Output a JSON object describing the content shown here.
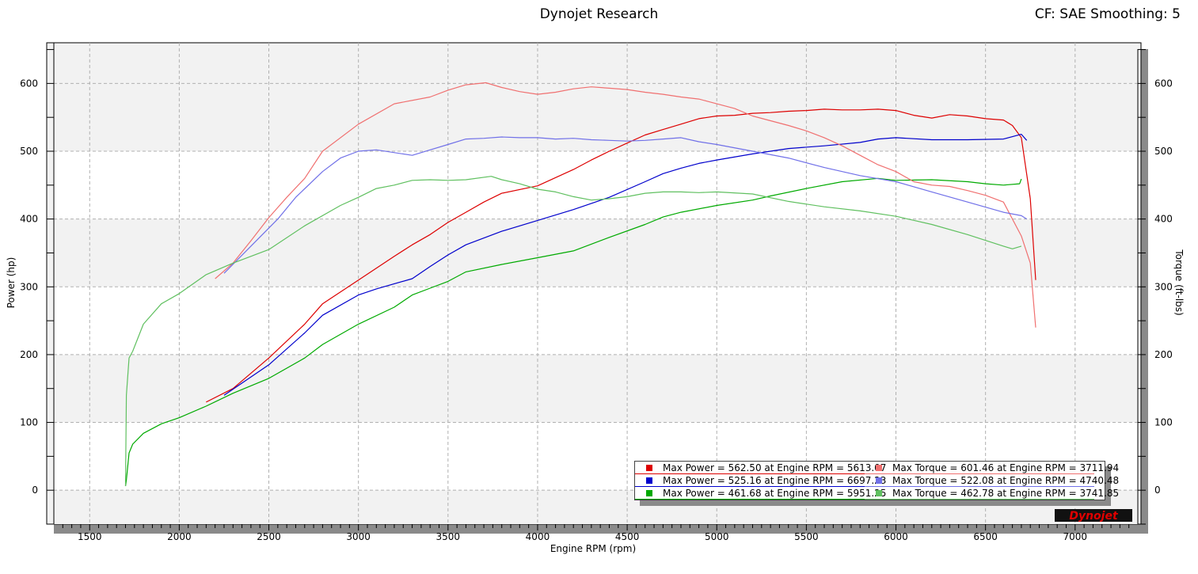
{
  "header": {
    "title": "Dynojet Research",
    "cf_info": "CF: SAE Smoothing: 5"
  },
  "logo_text": "Dynojet",
  "chart_data": {
    "type": "line",
    "title": "Dynojet Research",
    "xlabel": "Engine RPM (rpm)",
    "ylabel": "Power (hp)",
    "y2label": "Torque (ft-lbs)",
    "xlim": [
      1300,
      7350
    ],
    "ylim": [
      -50,
      660
    ],
    "y2lim": [
      -50,
      660
    ],
    "xticks": [
      "1500",
      "2000",
      "2500",
      "3000",
      "3500",
      "4000",
      "4500",
      "5000",
      "5500",
      "6000",
      "6500",
      "7000"
    ],
    "yticks": [
      "0",
      "100",
      "200",
      "300",
      "400",
      "500",
      "600"
    ],
    "y2ticks": [
      "0",
      "100",
      "200",
      "300",
      "400",
      "500",
      "600"
    ],
    "grid": true,
    "legend_position": "bottom-right",
    "colors": {
      "power_red": "#dd0000",
      "power_blue": "#0000cc",
      "power_green": "#00aa00",
      "torque_red": "#f07070",
      "torque_blue": "#7070e8",
      "torque_green": "#60c060"
    },
    "series": [
      {
        "name": "Max Power = 562.50 at Engine RPM = 5613.07",
        "key": "power_red",
        "axis": "left",
        "x": [
          2150,
          2300,
          2500,
          2700,
          2800,
          3000,
          3200,
          3300,
          3400,
          3500,
          3600,
          3700,
          3800,
          4000,
          4200,
          4300,
          4400,
          4500,
          4600,
          4700,
          4800,
          4900,
          5000,
          5100,
          5200,
          5300,
          5400,
          5500,
          5600,
          5700,
          5800,
          5900,
          6000,
          6100,
          6200,
          6300,
          6400,
          6500,
          6600,
          6650,
          6700,
          6750,
          6780
        ],
        "values": [
          130,
          150,
          195,
          245,
          275,
          310,
          345,
          362,
          377,
          395,
          410,
          425,
          438,
          449,
          473,
          487,
          500,
          512,
          524,
          532,
          540,
          548,
          552,
          553,
          556,
          557,
          559,
          560,
          562,
          561,
          561,
          562,
          560,
          553,
          549,
          554,
          552,
          548,
          546,
          538,
          520,
          430,
          310
        ]
      },
      {
        "name": "Max Power = 525.16 at Engine RPM = 6697.23",
        "key": "power_blue",
        "axis": "left",
        "x": [
          2250,
          2500,
          2700,
          2800,
          3000,
          3100,
          3300,
          3400,
          3500,
          3600,
          3800,
          4000,
          4200,
          4400,
          4600,
          4700,
          4800,
          4900,
          5000,
          5200,
          5400,
          5600,
          5800,
          5900,
          6000,
          6200,
          6400,
          6600,
          6700,
          6730
        ],
        "values": [
          140,
          185,
          232,
          258,
          288,
          297,
          312,
          330,
          347,
          362,
          382,
          398,
          414,
          432,
          455,
          467,
          475,
          482,
          487,
          496,
          504,
          508,
          513,
          518,
          520,
          517,
          517,
          518,
          525,
          516
        ]
      },
      {
        "name": "Max Power = 461.68 at Engine RPM = 5951.25",
        "key": "power_green",
        "axis": "left",
        "x": [
          1700,
          1705,
          1720,
          1740,
          1800,
          1900,
          2000,
          2150,
          2300,
          2500,
          2700,
          2800,
          3000,
          3200,
          3300,
          3400,
          3500,
          3600,
          3800,
          4000,
          4200,
          4400,
          4600,
          4700,
          4800,
          5000,
          5200,
          5300,
          5500,
          5700,
          5900,
          6000,
          6200,
          6400,
          6500,
          6600,
          6690,
          6700
        ],
        "values": [
          6,
          15,
          55,
          68,
          84,
          98,
          107,
          124,
          143,
          165,
          195,
          215,
          245,
          270,
          288,
          298,
          308,
          322,
          333,
          343,
          353,
          373,
          392,
          403,
          410,
          420,
          428,
          434,
          445,
          455,
          460,
          457,
          458,
          455,
          452,
          450,
          452,
          459
        ]
      },
      {
        "name": "Max Torque = 601.46 at Engine RPM = 3711.94",
        "key": "torque_red",
        "axis": "right",
        "x": [
          2200,
          2300,
          2400,
          2500,
          2600,
          2700,
          2800,
          3000,
          3200,
          3400,
          3500,
          3600,
          3711,
          3800,
          3900,
          4000,
          4100,
          4200,
          4300,
          4400,
          4500,
          4600,
          4700,
          4800,
          4900,
          5000,
          5100,
          5200,
          5300,
          5400,
          5500,
          5600,
          5700,
          5800,
          5900,
          6000,
          6100,
          6200,
          6300,
          6400,
          6500,
          6600,
          6700,
          6750,
          6780
        ],
        "values": [
          312,
          335,
          368,
          402,
          432,
          460,
          500,
          540,
          570,
          580,
          590,
          598,
          601,
          594,
          588,
          584,
          587,
          592,
          595,
          593,
          591,
          587,
          584,
          580,
          577,
          570,
          563,
          552,
          545,
          538,
          530,
          520,
          508,
          494,
          480,
          470,
          455,
          450,
          448,
          442,
          435,
          425,
          375,
          335,
          240
        ]
      },
      {
        "name": "Max Torque = 522.08 at Engine RPM = 4740.48",
        "key": "torque_blue",
        "axis": "right",
        "x": [
          2250,
          2400,
          2550,
          2650,
          2800,
          2900,
          3000,
          3100,
          3300,
          3400,
          3500,
          3600,
          3700,
          3800,
          3900,
          4000,
          4100,
          4200,
          4300,
          4400,
          4500,
          4600,
          4700,
          4800,
          4900,
          5000,
          5200,
          5400,
          5600,
          5800,
          6000,
          6200,
          6400,
          6600,
          6700,
          6730
        ],
        "values": [
          320,
          360,
          400,
          432,
          470,
          490,
          500,
          502,
          494,
          502,
          510,
          518,
          519,
          521,
          520,
          520,
          518,
          519,
          517,
          516,
          515,
          516,
          518,
          520,
          514,
          510,
          500,
          490,
          476,
          464,
          455,
          440,
          425,
          410,
          405,
          400
        ]
      },
      {
        "name": "Max Torque = 462.78 at Engine RPM = 3741.85",
        "key": "torque_green",
        "axis": "right",
        "x": [
          1700,
          1705,
          1720,
          1740,
          1800,
          1900,
          2000,
          2150,
          2300,
          2500,
          2700,
          2900,
          3000,
          3100,
          3200,
          3300,
          3400,
          3500,
          3600,
          3741,
          3800,
          3900,
          4000,
          4100,
          4200,
          4300,
          4400,
          4500,
          4600,
          4700,
          4800,
          4900,
          5000,
          5200,
          5400,
          5600,
          5800,
          6000,
          6200,
          6400,
          6600,
          6650,
          6700
        ],
        "values": [
          6,
          140,
          195,
          205,
          245,
          275,
          290,
          318,
          335,
          355,
          390,
          420,
          432,
          445,
          450,
          457,
          458,
          457,
          458,
          463,
          458,
          452,
          444,
          440,
          433,
          428,
          430,
          433,
          438,
          440,
          440,
          439,
          440,
          437,
          426,
          418,
          412,
          404,
          392,
          377,
          360,
          356,
          360
        ]
      }
    ]
  },
  "legend": {
    "left": [
      {
        "label": "Max Power = 562.50 at Engine RPM = 5613.07",
        "key": "power_red"
      },
      {
        "label": "Max Power = 525.16 at Engine RPM = 6697.23",
        "key": "power_blue"
      },
      {
        "label": "Max Power = 461.68 at Engine RPM = 5951.25",
        "key": "power_green"
      }
    ],
    "right": [
      {
        "label": "Max Torque = 601.46 at Engine RPM = 3711.94",
        "key": "torque_red"
      },
      {
        "label": "Max Torque = 522.08 at Engine RPM = 4740.48",
        "key": "torque_blue"
      },
      {
        "label": "Max Torque = 462.78 at Engine RPM = 3741.85",
        "key": "torque_green"
      }
    ]
  }
}
